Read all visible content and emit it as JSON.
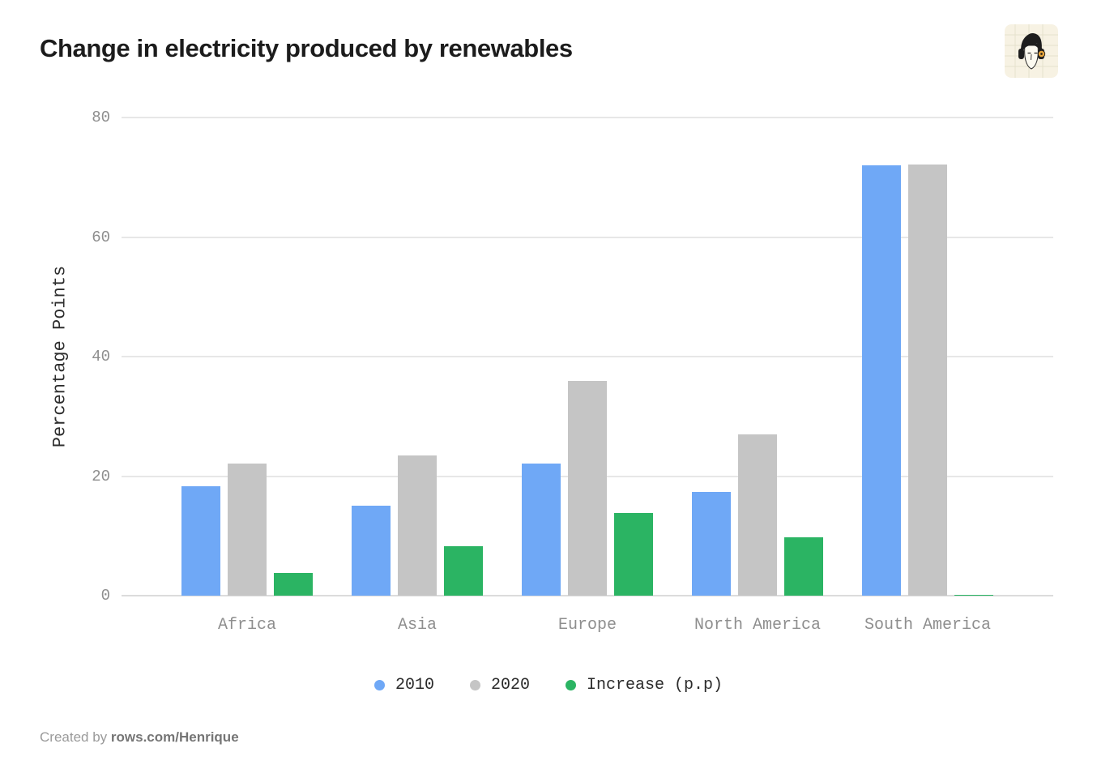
{
  "header": {
    "title": "Change in electricity produced by renewables",
    "logo": "rows-avatar-face-with-headphones"
  },
  "footer": {
    "created_by": "Created by ",
    "author": "rows.com/Henrique"
  },
  "ui_colors": {
    "background": "#ffffff",
    "title_text": "#1c1c1c",
    "tick_text": "#8e8e8e",
    "axis_label_text": "#2e2e2e",
    "legend_text": "#2b2b2b",
    "gridline": "#e7e7e7",
    "axis_line": "#dcdcdc",
    "logo_background": "#f7f2e3",
    "logo_accent": "#e9a63b"
  },
  "chart_data": {
    "type": "bar",
    "title": "Change in electricity produced by renewables",
    "xlabel": "",
    "ylabel": "Percentage Points",
    "categories": [
      "Africa",
      "Asia",
      "Europe",
      "North America",
      "South America"
    ],
    "series": [
      {
        "name": "2010",
        "color": "#6FA8F6",
        "values": [
          18.3,
          15.1,
          22.1,
          17.3,
          72.0
        ]
      },
      {
        "name": "2020",
        "color": "#C5C5C5",
        "values": [
          22.1,
          23.4,
          35.9,
          27.0,
          72.1
        ]
      },
      {
        "name": "Increase (p.p)",
        "color": "#2BB463",
        "values": [
          3.8,
          8.3,
          13.8,
          9.7,
          0.1
        ]
      }
    ],
    "ylim": [
      0,
      80
    ],
    "yticks": [
      0,
      20,
      40,
      60,
      80
    ],
    "grid": true,
    "legend_position": "bottom"
  }
}
